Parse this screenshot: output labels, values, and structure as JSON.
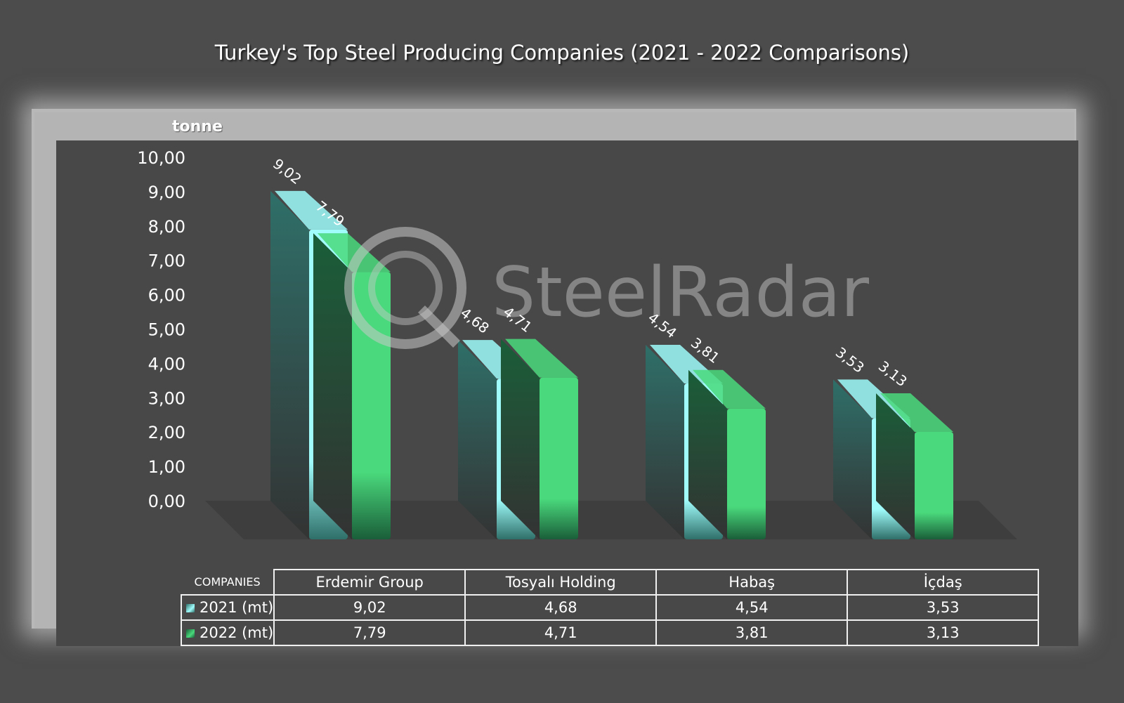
{
  "chart_data": {
    "type": "bar",
    "title": "Turkey's Top Steel Producing Companies (2021 - 2022 Comparisons)",
    "ylabel": "tonne",
    "ylim": [
      0,
      10
    ],
    "yticks": [
      "0,00",
      "1,00",
      "2,00",
      "3,00",
      "4,00",
      "5,00",
      "6,00",
      "7,00",
      "8,00",
      "9,00",
      "10,00"
    ],
    "table_header": "COMPANIES",
    "categories": [
      "Erdemir Group",
      "Tosyalı Holding",
      "Habaş",
      "İçdaş"
    ],
    "series": [
      {
        "name": "2021 (mt)",
        "values": [
          9.02,
          4.68,
          4.54,
          3.53
        ],
        "labels": [
          "9,02",
          "4,68",
          "4,54",
          "3,53"
        ],
        "color": "#9ffcfb",
        "shade": "#2f6f69"
      },
      {
        "name": "2022 (mt)",
        "values": [
          7.79,
          4.71,
          3.81,
          3.13
        ],
        "labels": [
          "7,79",
          "4,71",
          "3,81",
          "3,13"
        ],
        "color": "#4ad97c",
        "shade": "#1a5e39"
      }
    ],
    "grid": false,
    "legend": "data-table"
  },
  "watermark": {
    "text": "SteelRadar"
  },
  "colors": {
    "background": "#4c4c4c",
    "plot": "#484848",
    "frame": "#b4b4b4"
  }
}
